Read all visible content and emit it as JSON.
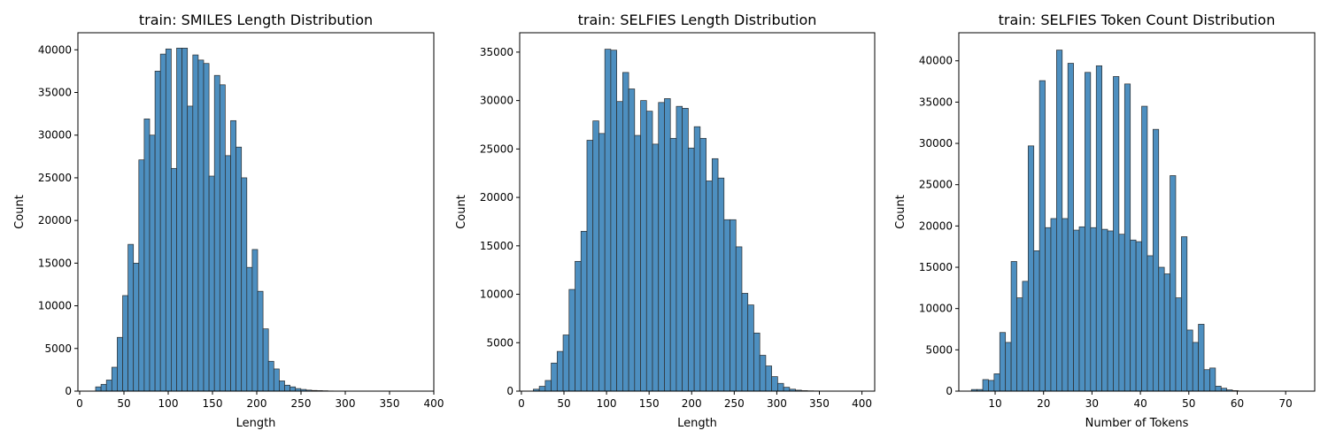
{
  "chart_data": [
    {
      "type": "bar",
      "title": "train: SMILES Length Distribution",
      "xlabel": "Length",
      "ylabel": "Count",
      "bin_start": 18,
      "bin_width": 6.1,
      "values": [
        500,
        800,
        1300,
        2800,
        6300,
        11200,
        17200,
        15000,
        27100,
        31900,
        30000,
        37500,
        39500,
        40100,
        26100,
        40200,
        40200,
        33400,
        39400,
        38800,
        38400,
        25200,
        37000,
        35900,
        27600,
        31700,
        28600,
        25000,
        14500,
        16600,
        11700,
        7300,
        3500,
        2600,
        1200,
        700,
        500,
        300,
        200,
        120,
        80,
        60,
        40,
        20
      ],
      "xlim": [
        -2,
        400
      ],
      "ylim": [
        0,
        42000
      ],
      "xticks": [
        0,
        50,
        100,
        150,
        200,
        250,
        300,
        350,
        400
      ],
      "yticks": [
        0,
        5000,
        10000,
        15000,
        20000,
        25000,
        30000,
        35000,
        40000
      ],
      "grid": false
    },
    {
      "type": "bar",
      "title": "train: SELFIES Length Distribution",
      "xlabel": "Length",
      "ylabel": "Count",
      "bin_start": 14,
      "bin_width": 7.0,
      "values": [
        200,
        500,
        1100,
        2900,
        4100,
        5800,
        10500,
        13400,
        16500,
        25900,
        27900,
        26600,
        35300,
        35200,
        29900,
        32900,
        31200,
        26400,
        30000,
        28900,
        25500,
        29800,
        30200,
        26100,
        29400,
        29200,
        25100,
        27300,
        26100,
        21700,
        24000,
        22000,
        17700,
        17700,
        14900,
        10100,
        8900,
        6000,
        3700,
        2600,
        1500,
        800,
        400,
        200,
        100,
        50,
        30,
        20
      ],
      "xlim": [
        -2,
        415
      ],
      "ylim": [
        0,
        37000
      ],
      "xticks": [
        0,
        50,
        100,
        150,
        200,
        250,
        300,
        350,
        400
      ],
      "yticks": [
        0,
        5000,
        10000,
        15000,
        20000,
        25000,
        30000,
        35000
      ],
      "grid": false
    },
    {
      "type": "bar",
      "title": "train: SELFIES Token Count Distribution",
      "xlabel": "Number of Tokens",
      "ylabel": "Count",
      "bin_start": 5.1,
      "bin_width": 1.172,
      "values": [
        200,
        200,
        1400,
        1300,
        2100,
        7100,
        5900,
        15700,
        11300,
        13300,
        29700,
        17000,
        37600,
        19800,
        20900,
        41300,
        20900,
        39700,
        19500,
        19900,
        38600,
        19800,
        39400,
        19600,
        19400,
        38100,
        19000,
        37200,
        18300,
        18100,
        34500,
        16400,
        31700,
        15000,
        14200,
        26100,
        11300,
        18700,
        7400,
        5900,
        8100,
        2600,
        2800,
        600,
        350,
        150,
        60
      ],
      "xlim": [
        2.5,
        76
      ],
      "ylim": [
        0,
        43400
      ],
      "xticks": [
        10,
        20,
        30,
        40,
        50,
        60,
        70
      ],
      "yticks": [
        0,
        5000,
        10000,
        15000,
        20000,
        25000,
        30000,
        35000,
        40000
      ],
      "grid": false
    }
  ],
  "colors": {
    "bar_fill": "#4d8fc0",
    "bar_edge": "#2b2b2b",
    "axis": "#000000",
    "background": "#ffffff"
  }
}
